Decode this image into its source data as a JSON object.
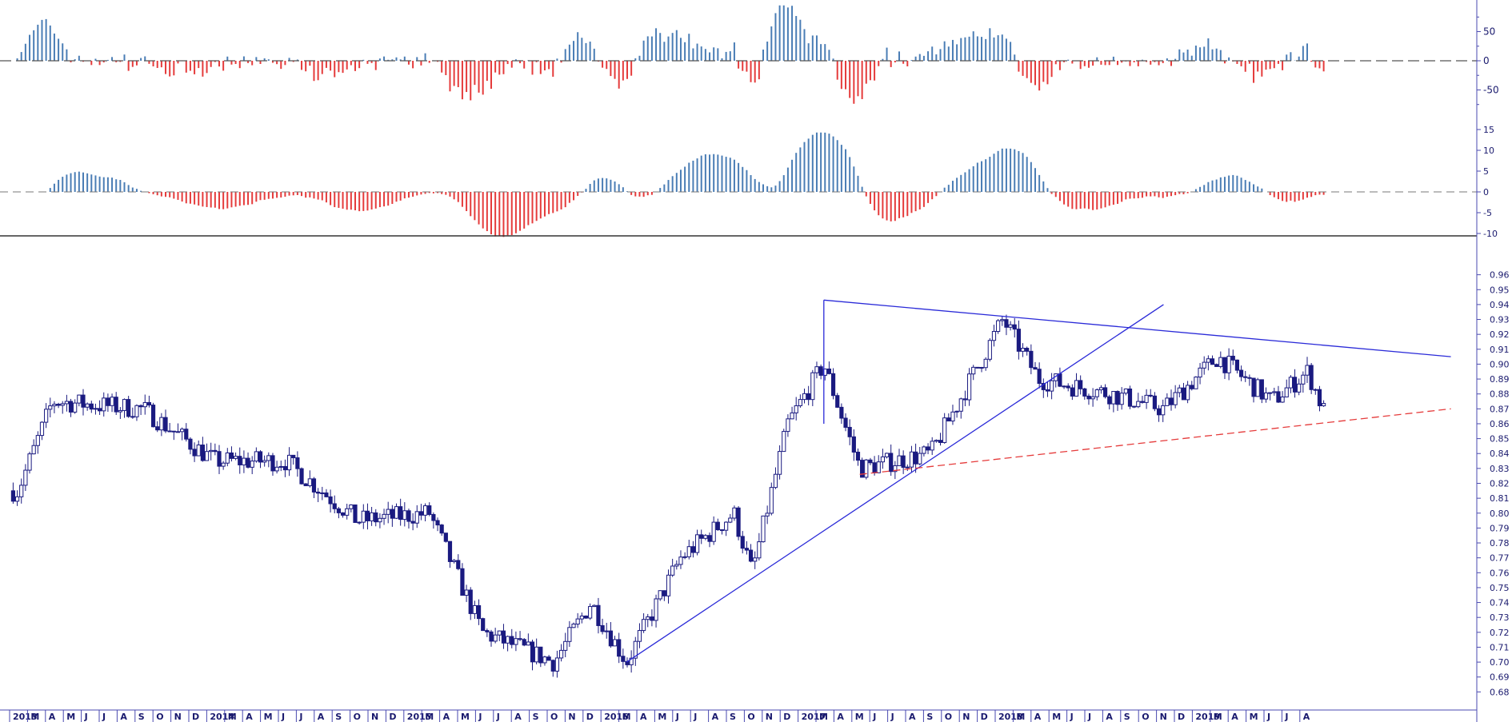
{
  "chart_data": [
    {
      "panel": "oscillator-1",
      "type": "bar",
      "y_tick_labels": [
        "50",
        "0",
        "-50"
      ],
      "ylim": [
        -80,
        95
      ],
      "zero_line": "dashed",
      "colors": {
        "positive": "#4a7db5",
        "negative": "#e53b3b"
      }
    },
    {
      "panel": "oscillator-2",
      "type": "bar",
      "y_tick_labels": [
        "15",
        "10",
        "5",
        "0",
        "-5",
        "-10"
      ],
      "ylim": [
        -11,
        17
      ],
      "zero_line": "dashed",
      "colors": {
        "positive": "#4a7db5",
        "negative": "#e53b3b"
      }
    },
    {
      "panel": "price",
      "type": "candlestick",
      "interval": "weekly",
      "ylim": [
        0.67,
        0.97
      ],
      "y_tick_labels": [
        "0.96",
        "0.95",
        "0.94",
        "0.93",
        "0.92",
        "0.91",
        "0.90",
        "0.89",
        "0.88",
        "0.87",
        "0.86",
        "0.85",
        "0.84",
        "0.83",
        "0.82",
        "0.81",
        "0.80",
        "0.79",
        "0.78",
        "0.77",
        "0.76",
        "0.75",
        "0.74",
        "0.73",
        "0.72",
        "0.71",
        "0.70",
        "0.69",
        "0.68"
      ],
      "colors": {
        "candle": "#1a1a80",
        "trendline": "#2a2ad8",
        "support": "#e53b3b"
      },
      "key_points": [
        {
          "date": "2013-01",
          "close": 0.815
        },
        {
          "date": "2013-03",
          "close": 0.875
        },
        {
          "date": "2013-08",
          "close": 0.87
        },
        {
          "date": "2013-12",
          "close": 0.835
        },
        {
          "date": "2014-04",
          "close": 0.835
        },
        {
          "date": "2014-08",
          "close": 0.795
        },
        {
          "date": "2014-12",
          "close": 0.8
        },
        {
          "date": "2015-03",
          "close": 0.72
        },
        {
          "date": "2015-07",
          "close": 0.7
        },
        {
          "date": "2015-09",
          "close": 0.74
        },
        {
          "date": "2015-11",
          "close": 0.7
        },
        {
          "date": "2016-02",
          "close": 0.77
        },
        {
          "date": "2016-05",
          "close": 0.8
        },
        {
          "date": "2016-06",
          "close": 0.76
        },
        {
          "date": "2016-08",
          "close": 0.86
        },
        {
          "date": "2016-10",
          "close": 0.9
        },
        {
          "date": "2016-12",
          "close": 0.83
        },
        {
          "date": "2017-04",
          "close": 0.84
        },
        {
          "date": "2017-08",
          "close": 0.93
        },
        {
          "date": "2017-10",
          "close": 0.89
        },
        {
          "date": "2018-02",
          "close": 0.88
        },
        {
          "date": "2018-05",
          "close": 0.87
        },
        {
          "date": "2018-08",
          "close": 0.905
        },
        {
          "date": "2018-11",
          "close": 0.875
        },
        {
          "date": "2019-01",
          "close": 0.895
        },
        {
          "date": "2019-02",
          "close": 0.865
        }
      ],
      "trendlines": [
        {
          "name": "",
          "style": "solid",
          "points": [
            {
              "date": "2016-10",
              "value": 0.943
            },
            {
              "date": "2019-09",
              "value": 0.905
            }
          ]
        },
        {
          "name": "",
          "style": "solid",
          "points": [
            {
              "date": "2015-11",
              "value": 0.7
            },
            {
              "date": "2018-05",
              "value": 0.94
            }
          ]
        },
        {
          "name": "",
          "style": "solid",
          "points": [
            {
              "date": "2016-10",
              "value": 0.943
            },
            {
              "date": "2016-10",
              "value": 0.86
            }
          ]
        },
        {
          "name": "",
          "style": "dashed",
          "points": [
            {
              "date": "2016-12",
              "value": 0.826
            },
            {
              "date": "2019-09",
              "value": 0.87
            }
          ]
        }
      ]
    }
  ],
  "x_axis": {
    "labels": [
      "2013",
      "M",
      "A",
      "M",
      "J",
      "J",
      "A",
      "S",
      "O",
      "N",
      "D",
      "2014",
      "M",
      "A",
      "M",
      "J",
      "J",
      "A",
      "S",
      "O",
      "N",
      "D",
      "2015",
      "M",
      "A",
      "M",
      "J",
      "J",
      "A",
      "S",
      "O",
      "N",
      "D",
      "2016",
      "M",
      "A",
      "M",
      "J",
      "J",
      "A",
      "S",
      "O",
      "N",
      "D",
      "2017",
      "M",
      "A",
      "M",
      "J",
      "J",
      "A",
      "S",
      "O",
      "N",
      "D",
      "2018",
      "M",
      "A",
      "M",
      "J",
      "J",
      "A",
      "S",
      "O",
      "N",
      "D",
      "2019",
      "M",
      "A",
      "M",
      "J",
      "J",
      "A"
    ]
  }
}
